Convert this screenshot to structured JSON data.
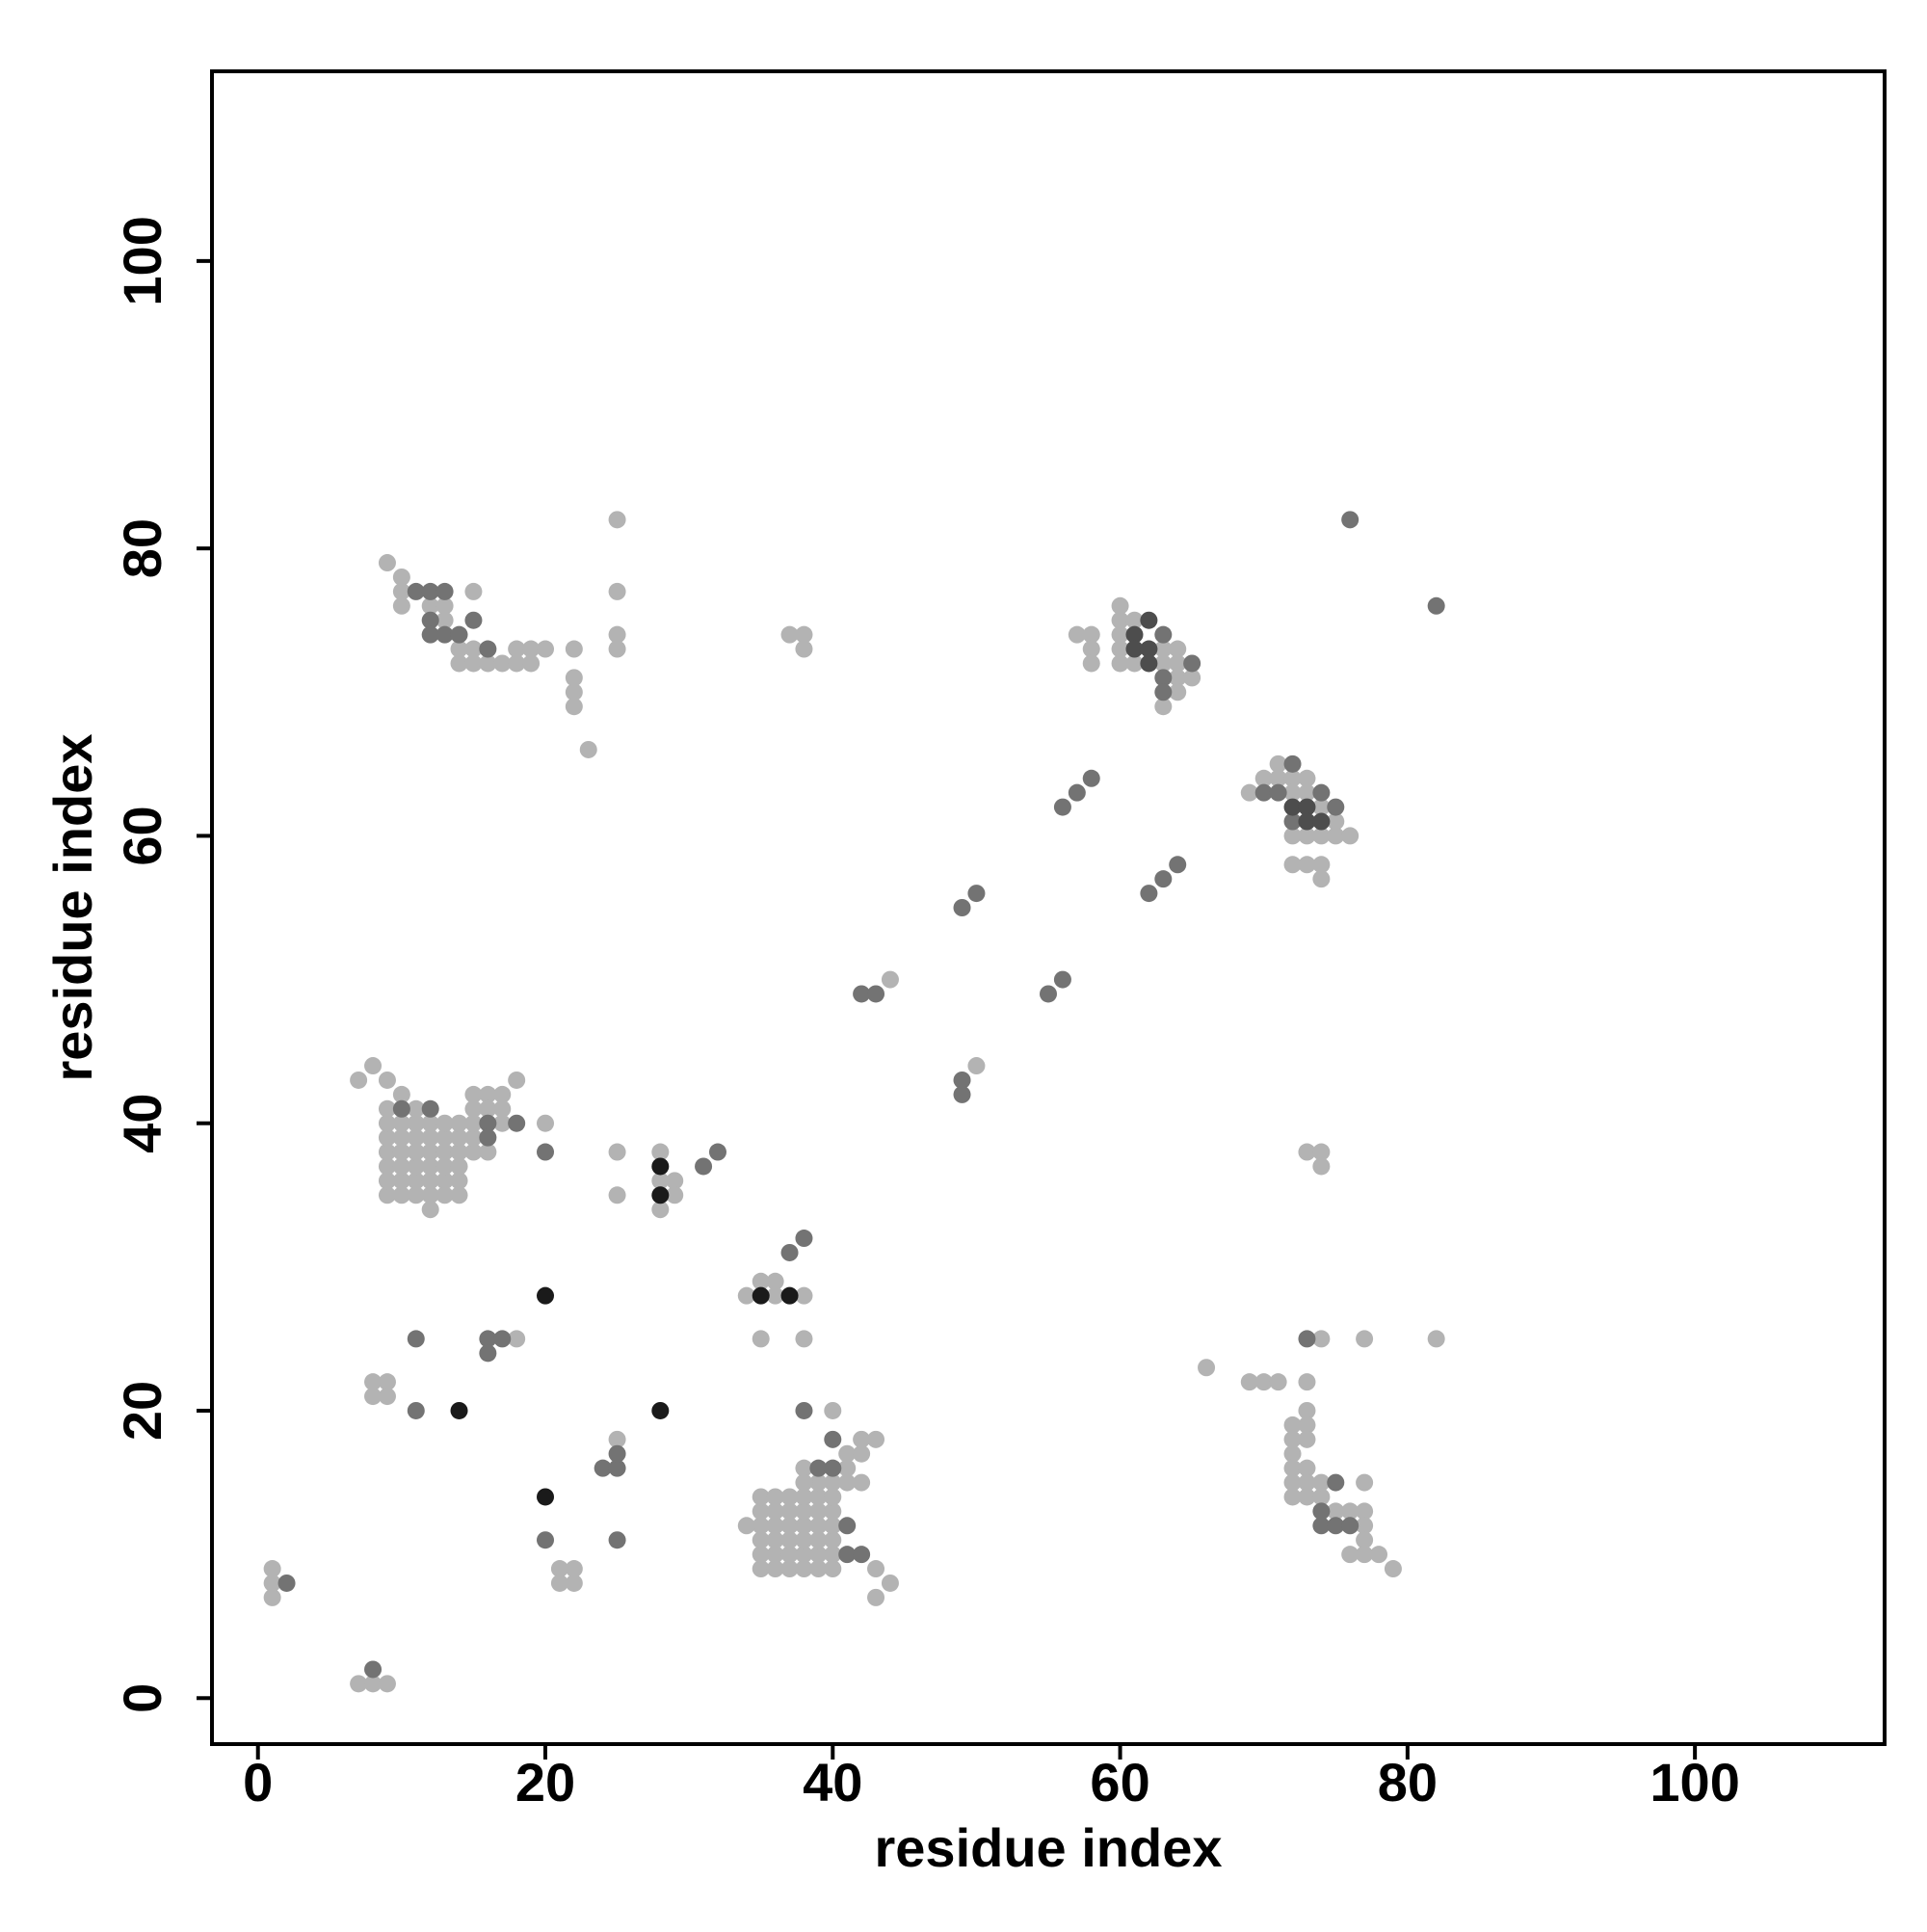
{
  "chart_data": {
    "type": "scatter",
    "xlabel": "residue index",
    "ylabel": "residue index",
    "xlim": [
      -3.2,
      113.2
    ],
    "ylim": [
      -3.2,
      113.2
    ],
    "xticks": [
      0,
      20,
      40,
      60,
      80,
      100
    ],
    "yticks": [
      0,
      20,
      40,
      60,
      80,
      100
    ],
    "series": [
      {
        "color": "#b3b3b3",
        "x": [
          1,
          1,
          1,
          7,
          8,
          9,
          8,
          9,
          8,
          9,
          18,
          21,
          22,
          21,
          22,
          25,
          35,
          35,
          35,
          35,
          35,
          35,
          36,
          36,
          36,
          36,
          36,
          36,
          37,
          37,
          37,
          37,
          37,
          37,
          38,
          38,
          38,
          38,
          38,
          38,
          39,
          39,
          39,
          39,
          39,
          39,
          40,
          40,
          40,
          40,
          40,
          40,
          34,
          38,
          39,
          38,
          40,
          40,
          41,
          42,
          42,
          43,
          41,
          42,
          41,
          43,
          43,
          44,
          36,
          34,
          38,
          35,
          36,
          35,
          38,
          28,
          28,
          29,
          29,
          28,
          25,
          25,
          20,
          9,
          9,
          9,
          9,
          9,
          9,
          10,
          10,
          10,
          10,
          10,
          10,
          11,
          11,
          11,
          11,
          11,
          11,
          12,
          12,
          12,
          12,
          12,
          12,
          13,
          13,
          13,
          13,
          13,
          13,
          14,
          14,
          14,
          14,
          14,
          14,
          7,
          8,
          9,
          10,
          15,
          16,
          17,
          15,
          16,
          17,
          18,
          17,
          15,
          16,
          15,
          15,
          9,
          11,
          12,
          9,
          10,
          10,
          10,
          12,
          13,
          13,
          15,
          14,
          15,
          14,
          15,
          16,
          17,
          18,
          19,
          18,
          19,
          20,
          22,
          22,
          22,
          22,
          23,
          25,
          25,
          25,
          25,
          37,
          38,
          38,
          44,
          50,
          57,
          58,
          58,
          58,
          60,
          60,
          61,
          60,
          60,
          60,
          61,
          63,
          64,
          63,
          64,
          64,
          64,
          65,
          63,
          69,
          70,
          71,
          71,
          72,
          73,
          72,
          73,
          74,
          75,
          72,
          73,
          74,
          75,
          76,
          72,
          73,
          74,
          74,
          73,
          74,
          74,
          66,
          69,
          70,
          71,
          73,
          74,
          77,
          82,
          73,
          72,
          73,
          72,
          73,
          72,
          72,
          73,
          72,
          73,
          72,
          73,
          74,
          74,
          75,
          76,
          77,
          77,
          77,
          77,
          76,
          77,
          78,
          79
        ],
        "y": [
          9,
          8,
          7,
          1,
          1,
          1,
          22,
          22,
          21,
          21,
          25,
          9,
          9,
          8,
          8,
          18,
          9,
          10,
          11,
          12,
          13,
          14,
          9,
          10,
          11,
          12,
          13,
          14,
          9,
          10,
          11,
          12,
          13,
          14,
          9,
          10,
          11,
          12,
          13,
          14,
          9,
          10,
          11,
          12,
          13,
          14,
          9,
          10,
          11,
          12,
          13,
          14,
          12,
          16,
          15,
          15,
          15,
          20,
          17,
          17,
          18,
          18,
          15,
          15,
          16,
          9,
          7,
          8,
          28,
          28,
          28,
          29,
          29,
          25,
          25,
          38,
          36,
          36,
          35,
          34,
          38,
          35,
          40,
          35,
          36,
          37,
          38,
          39,
          40,
          35,
          36,
          37,
          38,
          39,
          40,
          35,
          36,
          37,
          38,
          39,
          40,
          35,
          36,
          37,
          38,
          39,
          40,
          35,
          36,
          37,
          38,
          39,
          40,
          35,
          36,
          37,
          38,
          39,
          40,
          43,
          44,
          43,
          42,
          42,
          42,
          42,
          41,
          41,
          41,
          43,
          40,
          38,
          38,
          39,
          40,
          41,
          41,
          34,
          79,
          78,
          77,
          76,
          76,
          76,
          75,
          77,
          73,
          73,
          72,
          72,
          72,
          72,
          72,
          72,
          73,
          73,
          73,
          73,
          71,
          70,
          69,
          66,
          82,
          77,
          74,
          73,
          74,
          74,
          73,
          50,
          44,
          74,
          74,
          73,
          72,
          76,
          75,
          75,
          74,
          73,
          72,
          72,
          73,
          73,
          72,
          72,
          71,
          70,
          71,
          69,
          63,
          64,
          64,
          65,
          64,
          64,
          63,
          63,
          62,
          61,
          60,
          60,
          60,
          60,
          60,
          58,
          58,
          58,
          57,
          38,
          38,
          37,
          23,
          22,
          22,
          22,
          22,
          25,
          25,
          25,
          20,
          19,
          19,
          18,
          18,
          17,
          16,
          16,
          15,
          15,
          14,
          14,
          14,
          15,
          13,
          13,
          13,
          12,
          15,
          11,
          10,
          10,
          10,
          9
        ]
      },
      {
        "color": "#737373",
        "x": [
          2,
          8,
          11,
          11,
          16,
          17,
          16,
          20,
          24,
          25,
          25,
          25,
          38,
          40,
          39,
          40,
          41,
          41,
          42,
          37,
          38,
          31,
          32,
          20,
          10,
          12,
          16,
          16,
          18,
          11,
          12,
          13,
          12,
          12,
          13,
          14,
          15,
          16,
          42,
          43,
          49,
          50,
          49,
          49,
          55,
          56,
          56,
          57,
          58,
          62,
          63,
          64,
          63,
          63,
          63,
          65,
          76,
          82,
          70,
          71,
          72,
          74,
          75,
          72,
          73,
          75,
          74,
          74,
          75,
          76
        ],
        "y": [
          8,
          2,
          25,
          20,
          25,
          25,
          24,
          11,
          16,
          16,
          17,
          11,
          20,
          18,
          16,
          16,
          12,
          10,
          10,
          31,
          32,
          37,
          38,
          38,
          41,
          41,
          40,
          39,
          40,
          77,
          77,
          77,
          75,
          74,
          74,
          74,
          75,
          73,
          49,
          49,
          55,
          56,
          43,
          42,
          49,
          50,
          62,
          63,
          64,
          56,
          57,
          58,
          74,
          71,
          70,
          72,
          82,
          76,
          63,
          63,
          65,
          63,
          62,
          61,
          25,
          15,
          13,
          12,
          12,
          12
        ]
      },
      {
        "color": "#4d4d4d",
        "x": [
          61,
          61,
          62,
          62,
          62,
          72,
          73,
          73,
          74
        ],
        "y": [
          74,
          73,
          73,
          72,
          75,
          62,
          62,
          61,
          61
        ]
      },
      {
        "color": "#1a1a1a",
        "x": [
          14,
          20,
          20,
          28,
          35,
          37,
          28,
          28
        ],
        "y": [
          20,
          28,
          14,
          20,
          28,
          28,
          37,
          35
        ]
      }
    ]
  }
}
